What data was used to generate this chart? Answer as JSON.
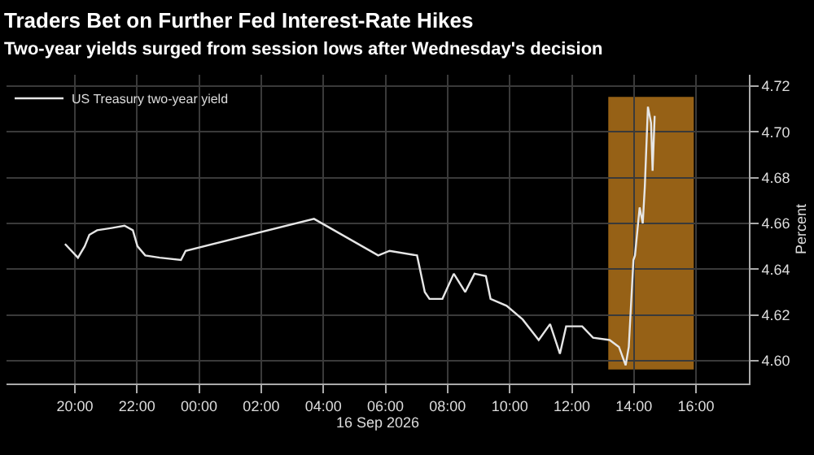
{
  "chart_data": {
    "type": "line",
    "title": "Traders Bet on Further Fed Interest-Rate Hikes",
    "subtitle": "Two-year yields surged from session lows after Wednesday's decision",
    "xlabel": "16 Sep 2026",
    "ylabel": "Percent",
    "x": [
      "2026-09-15T19:41",
      "2026-09-15T20:06",
      "2026-09-15T20:19",
      "2026-09-15T20:28",
      "2026-09-15T20:43",
      "2026-09-15T21:11",
      "2026-09-15T21:36",
      "2026-09-15T21:52",
      "2026-09-15T22:01",
      "2026-09-15T22:16",
      "2026-09-15T22:44",
      "2026-09-15T23:25",
      "2026-09-15T23:34",
      "2026-09-16T03:42",
      "2026-09-16T05:46",
      "2026-09-16T06:08",
      "2026-09-16T07:01",
      "2026-09-16T07:16",
      "2026-09-16T07:25",
      "2026-09-16T07:50",
      "2026-09-16T08:12",
      "2026-09-16T08:34",
      "2026-09-16T08:52",
      "2026-09-16T09:14",
      "2026-09-16T09:23",
      "2026-09-16T09:54",
      "2026-09-16T10:25",
      "2026-09-16T10:56",
      "2026-09-16T11:18",
      "2026-09-16T11:37",
      "2026-09-16T11:49",
      "2026-09-16T12:20",
      "2026-09-16T12:41",
      "2026-09-16T13:13",
      "2026-09-16T13:31",
      "2026-09-16T13:44",
      "2026-09-16T13:50",
      "2026-09-16T13:59",
      "2026-09-16T14:02",
      "2026-09-16T14:11",
      "2026-09-16T14:17",
      "2026-09-16T14:21",
      "2026-09-16T14:27",
      "2026-09-16T14:33",
      "2026-09-16T14:36",
      "2026-09-16T14:40"
    ],
    "series": [
      {
        "name": "US Treasury two-year yield",
        "color": "#e6e6e6",
        "values": [
          4.651,
          4.645,
          4.65,
          4.655,
          4.657,
          4.658,
          4.659,
          4.657,
          4.65,
          4.646,
          4.645,
          4.644,
          4.648,
          4.662,
          4.646,
          4.648,
          4.646,
          4.63,
          4.627,
          4.627,
          4.638,
          4.63,
          4.638,
          4.637,
          4.627,
          4.624,
          4.618,
          4.609,
          4.616,
          4.603,
          4.615,
          4.615,
          4.61,
          4.609,
          4.606,
          4.598,
          4.606,
          4.644,
          4.646,
          4.667,
          4.66,
          4.676,
          4.711,
          4.704,
          4.683,
          4.707
        ]
      }
    ],
    "xlim": [
      "2026-09-15T17:48",
      "2026-09-16T17:42"
    ],
    "xticks": [
      {
        "value": "2026-09-15T20:00",
        "label": "20:00"
      },
      {
        "value": "2026-09-15T22:00",
        "label": "22:00"
      },
      {
        "value": "2026-09-16T00:00",
        "label": "00:00"
      },
      {
        "value": "2026-09-16T02:00",
        "label": "02:00"
      },
      {
        "value": "2026-09-16T04:00",
        "label": "04:00"
      },
      {
        "value": "2026-09-16T06:00",
        "label": "06:00"
      },
      {
        "value": "2026-09-16T08:00",
        "label": "08:00"
      },
      {
        "value": "2026-09-16T10:00",
        "label": "10:00"
      },
      {
        "value": "2026-09-16T12:00",
        "label": "12:00"
      },
      {
        "value": "2026-09-16T14:00",
        "label": "14:00"
      },
      {
        "value": "2026-09-16T16:00",
        "label": "16:00"
      }
    ],
    "ylim": [
      4.59,
      4.725
    ],
    "yticks": [
      {
        "value": 4.6,
        "label": "4.60"
      },
      4.62,
      4.64,
      4.66,
      4.68,
      {
        "value": 4.7,
        "label": "4.70"
      },
      4.72
    ],
    "bands": [
      {
        "axis": "x",
        "from": "2026-09-16T13:12",
        "to": "2026-09-16T15:54",
        "color": "#c8821e"
      }
    ],
    "grid": true,
    "legend": "top left",
    "marker": "none",
    "line_style": "solid"
  }
}
